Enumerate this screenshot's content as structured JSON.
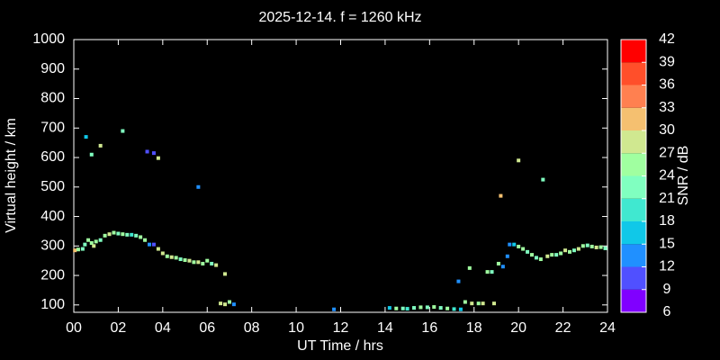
{
  "chart_data": {
    "type": "scatter",
    "title": "2025-12-14. f = 1260 kHz",
    "x_label": "UT Time / hrs",
    "y_label": "Virtual height / km",
    "colorbar_label": "SNR / dB",
    "xlim": [
      0,
      24
    ],
    "ylim": [
      75,
      1000
    ],
    "xticks": [
      {
        "value": 0,
        "label": "00"
      },
      {
        "value": 2,
        "label": "02"
      },
      {
        "value": 4,
        "label": "04"
      },
      {
        "value": 6,
        "label": "06"
      },
      {
        "value": 8,
        "label": "08"
      },
      10,
      12,
      14,
      16,
      18,
      20,
      22,
      24
    ],
    "yticks": [
      100,
      200,
      300,
      400,
      500,
      600,
      700,
      800,
      900,
      1000
    ],
    "clim": [
      6,
      42
    ],
    "cticks": [
      6,
      9,
      12,
      15,
      18,
      21,
      24,
      27,
      30,
      33,
      36,
      39,
      42
    ],
    "colorscale": [
      "#8000ff",
      "#5050ff",
      "#2090ff",
      "#10c8e8",
      "#40e8d0",
      "#80ffc0",
      "#a0ffa0",
      "#d0e890",
      "#f5c070",
      "#ff8050",
      "#ff4f2a",
      "#ff0000"
    ],
    "x": [
      0.05,
      0.2,
      0.4,
      0.5,
      0.65,
      0.8,
      0.9,
      1.0,
      1.2,
      1.4,
      1.6,
      1.8,
      2.0,
      2.2,
      2.4,
      2.6,
      2.8,
      3.0,
      3.2,
      3.4,
      3.6,
      3.8,
      4.0,
      4.2,
      4.4,
      4.6,
      4.8,
      5.0,
      5.2,
      5.4,
      5.6,
      5.8,
      6.0,
      6.2,
      6.4,
      6.8,
      6.6,
      6.8,
      7.0,
      7.2,
      0.55,
      0.8,
      1.2,
      2.2,
      3.3,
      3.6,
      3.8,
      5.6,
      11.7,
      14.2,
      14.5,
      14.8,
      15.0,
      15.3,
      15.6,
      15.9,
      16.2,
      16.5,
      16.8,
      17.1,
      17.4,
      17.3,
      17.6,
      17.8,
      17.9,
      18.2,
      18.4,
      18.6,
      18.8,
      18.9,
      19.1,
      19.2,
      19.3,
      19.5,
      19.6,
      19.8,
      20.0,
      20.0,
      20.2,
      20.4,
      20.6,
      20.8,
      21.0,
      21.1,
      21.3,
      21.5,
      21.7,
      21.9,
      22.1,
      22.3,
      22.5,
      22.7,
      22.9,
      23.1,
      23.3,
      23.5,
      23.7,
      23.9
    ],
    "values": [
      285,
      288,
      290,
      305,
      320,
      310,
      300,
      315,
      320,
      335,
      340,
      345,
      342,
      340,
      338,
      338,
      335,
      330,
      320,
      305,
      305,
      290,
      275,
      265,
      262,
      260,
      255,
      252,
      250,
      245,
      245,
      240,
      250,
      240,
      235,
      205,
      105,
      102,
      110,
      102,
      670,
      610,
      640,
      690,
      620,
      615,
      598,
      500,
      85,
      90,
      88,
      88,
      87,
      90,
      92,
      92,
      93,
      90,
      88,
      86,
      85,
      180,
      110,
      225,
      105,
      105,
      105,
      212,
      212,
      105,
      240,
      470,
      230,
      265,
      305,
      305,
      590,
      298,
      290,
      280,
      270,
      260,
      255,
      525,
      265,
      270,
      270,
      275,
      285,
      280,
      285,
      290,
      300,
      302,
      298,
      295,
      296,
      292
    ],
    "snr": [
      30,
      24,
      21,
      21,
      24,
      24,
      27,
      24,
      21,
      24,
      27,
      24,
      21,
      24,
      21,
      18,
      21,
      24,
      24,
      12,
      9,
      27,
      27,
      24,
      27,
      24,
      21,
      24,
      27,
      24,
      27,
      24,
      24,
      21,
      27,
      27,
      27,
      27,
      24,
      12,
      15,
      21,
      27,
      21,
      9,
      9,
      27,
      12,
      12,
      15,
      24,
      21,
      18,
      21,
      24,
      21,
      24,
      21,
      24,
      18,
      15,
      12,
      24,
      24,
      27,
      24,
      27,
      24,
      21,
      27,
      24,
      30,
      12,
      12,
      12,
      15,
      27,
      24,
      24,
      21,
      24,
      21,
      24,
      21,
      27,
      24,
      21,
      24,
      27,
      24,
      21,
      27,
      24,
      21,
      24,
      27,
      24,
      21
    ]
  }
}
